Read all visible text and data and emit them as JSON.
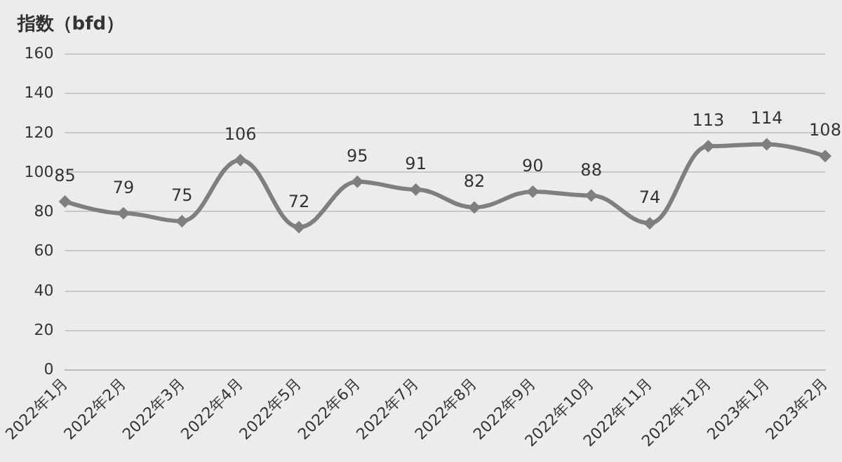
{
  "chart_data": {
    "type": "line",
    "ylabel": "指数（bfd）",
    "categories": [
      "2022年1月",
      "2022年2月",
      "2022年3月",
      "2022年4月",
      "2022年5月",
      "2022年6月",
      "2022年7月",
      "2022年8月",
      "2022年9月",
      "2022年10月",
      "2022年11月",
      "2022年12月",
      "2023年1月",
      "2023年2月"
    ],
    "series": [
      {
        "color": "#7f7f7f",
        "values": [
          85,
          79,
          75,
          106,
          72,
          95,
          91,
          82,
          90,
          88,
          74,
          113,
          114,
          108
        ]
      }
    ],
    "ylim": [
      0,
      160
    ],
    "yticks": [
      0,
      20,
      40,
      60,
      80,
      100,
      120,
      140,
      160
    ],
    "grid": "y",
    "marker": "diamond",
    "line_style": "solid",
    "data_labels": true
  }
}
